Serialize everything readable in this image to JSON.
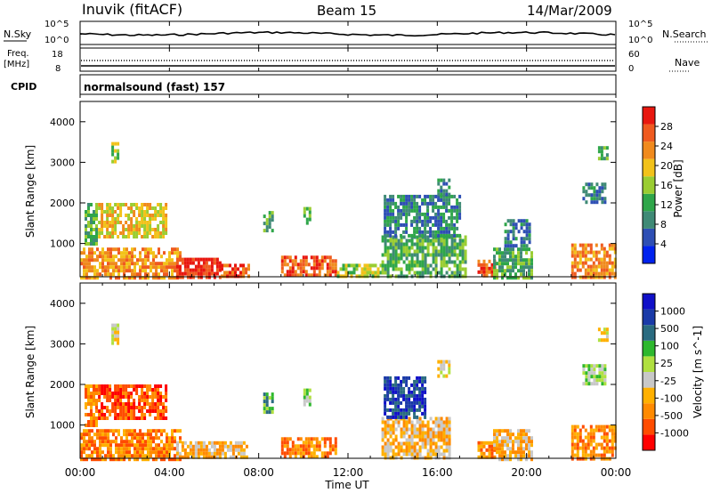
{
  "header": {
    "station": "Inuvik (fitACF)",
    "beam": "Beam 15",
    "date": "14/Mar/2009"
  },
  "strip_labels": {
    "nsky": "N.Sky",
    "nsearch": "N.Search",
    "freq_line1": "Freq.",
    "freq_line2": "[MHz]",
    "nave": "Nave",
    "cpid": "CPID"
  },
  "strip_ticks": {
    "nsky_top": "10^5",
    "nsky_bottom": "10^0",
    "nsearch_top": "10^5",
    "nsearch_bottom": "10^0",
    "freq_top": "18",
    "freq_bottom": "8",
    "nave_top": "60",
    "nave_bottom": "0"
  },
  "cpid_text": "normalsound (fast) 157",
  "xaxis": {
    "label": "Time UT",
    "ticks": [
      "00:00",
      "04:00",
      "08:00",
      "12:00",
      "16:00",
      "20:00",
      "00:00"
    ]
  },
  "colors": {
    "power": [
      "#0022ee",
      "#2e4fb4",
      "#3f8a76",
      "#2fa64a",
      "#9acd32",
      "#f2c21a",
      "#f08a1d",
      "#ef5a1f",
      "#e8170f"
    ],
    "velocity": [
      "#ff0000",
      "#ff4c00",
      "#ff8a00",
      "#ffb000",
      "#c8c8c8",
      "#b0e040",
      "#2eb82e",
      "#2a6b80",
      "#1a3aa8",
      "#1010c8"
    ]
  },
  "chart_data": [
    {
      "type": "heatmap",
      "name": "Power",
      "ylabel": "Slant Range [km]",
      "xlabel": "Time UT",
      "ylim": [
        180,
        4500
      ],
      "yticks": [
        "1000",
        "2000",
        "3000",
        "4000"
      ],
      "colorbar_label": "Power [dB]",
      "colorbar_ticks": [
        "4",
        "8",
        "12",
        "16",
        "20",
        "24",
        "28"
      ],
      "colorbar_range": [
        0,
        32
      ],
      "regions": [
        {
          "t0": 0.0,
          "t1": 4.5,
          "r0": 180,
          "r1": 900,
          "v": 22
        },
        {
          "t0": 4.3,
          "t1": 6.3,
          "r0": 180,
          "r1": 650,
          "v": 30
        },
        {
          "t0": 6.3,
          "t1": 7.5,
          "r0": 180,
          "r1": 500,
          "v": 28
        },
        {
          "t0": 0.8,
          "t1": 3.8,
          "r0": 1200,
          "r1": 2000,
          "v": 18
        },
        {
          "t0": 0.2,
          "t1": 0.7,
          "r0": 1000,
          "r1": 2000,
          "v": 10
        },
        {
          "t0": 1.4,
          "t1": 1.7,
          "r0": 3000,
          "r1": 3500,
          "v": 14
        },
        {
          "t0": 9.0,
          "t1": 11.5,
          "r0": 180,
          "r1": 700,
          "v": 26
        },
        {
          "t0": 11.5,
          "t1": 13.5,
          "r0": 180,
          "r1": 500,
          "v": 14
        },
        {
          "t0": 8.2,
          "t1": 8.6,
          "r0": 1300,
          "r1": 1800,
          "v": 10
        },
        {
          "t0": 10.0,
          "t1": 10.3,
          "r0": 1500,
          "r1": 1900,
          "v": 10
        },
        {
          "t0": 13.5,
          "t1": 17.3,
          "r0": 180,
          "r1": 1200,
          "v": 10
        },
        {
          "t0": 13.6,
          "t1": 17.0,
          "r0": 1200,
          "r1": 2200,
          "v": 8
        },
        {
          "t0": 16.0,
          "t1": 16.5,
          "r0": 2200,
          "r1": 2600,
          "v": 6
        },
        {
          "t0": 17.8,
          "t1": 18.6,
          "r0": 180,
          "r1": 600,
          "v": 26
        },
        {
          "t0": 18.5,
          "t1": 20.2,
          "r0": 180,
          "r1": 900,
          "v": 10
        },
        {
          "t0": 19.0,
          "t1": 20.1,
          "r0": 900,
          "r1": 1600,
          "v": 8
        },
        {
          "t0": 22.0,
          "t1": 24.0,
          "r0": 180,
          "r1": 1000,
          "v": 22
        },
        {
          "t0": 22.5,
          "t1": 23.5,
          "r0": 2000,
          "r1": 2500,
          "v": 8
        },
        {
          "t0": 23.2,
          "t1": 23.6,
          "r0": 3100,
          "r1": 3400,
          "v": 12
        }
      ]
    },
    {
      "type": "heatmap",
      "name": "Velocity",
      "ylabel": "Slant Range [km]",
      "xlabel": "Time UT",
      "ylim": [
        180,
        4500
      ],
      "yticks": [
        "1000",
        "2000",
        "3000",
        "4000"
      ],
      "colorbar_label": "Velocity [m s^-1]",
      "colorbar_ticks": [
        "-1000",
        "-500",
        "-100",
        "-25",
        "25",
        "100",
        "500",
        "1000"
      ],
      "regions": [
        {
          "t0": 0.0,
          "t1": 4.5,
          "r0": 180,
          "r1": 900,
          "v": 2
        },
        {
          "t0": 4.3,
          "t1": 7.5,
          "r0": 180,
          "r1": 600,
          "v": 3
        },
        {
          "t0": 0.8,
          "t1": 3.8,
          "r0": 1200,
          "r1": 2000,
          "v": 1
        },
        {
          "t0": 0.2,
          "t1": 0.7,
          "r0": 1000,
          "r1": 2000,
          "v": 2
        },
        {
          "t0": 1.4,
          "t1": 1.7,
          "r0": 3000,
          "r1": 3500,
          "v": 4
        },
        {
          "t0": 9.0,
          "t1": 11.5,
          "r0": 180,
          "r1": 700,
          "v": 2
        },
        {
          "t0": 8.2,
          "t1": 8.6,
          "r0": 1300,
          "r1": 1800,
          "v": 6
        },
        {
          "t0": 10.0,
          "t1": 10.3,
          "r0": 1500,
          "r1": 1900,
          "v": 5
        },
        {
          "t0": 13.5,
          "t1": 16.5,
          "r0": 180,
          "r1": 1200,
          "v": 3
        },
        {
          "t0": 13.6,
          "t1": 15.5,
          "r0": 1200,
          "r1": 2200,
          "v": 8
        },
        {
          "t0": 16.0,
          "t1": 16.5,
          "r0": 2200,
          "r1": 2600,
          "v": 4
        },
        {
          "t0": 17.8,
          "t1": 18.6,
          "r0": 180,
          "r1": 600,
          "v": 2
        },
        {
          "t0": 18.5,
          "t1": 20.2,
          "r0": 180,
          "r1": 900,
          "v": 3
        },
        {
          "t0": 22.0,
          "t1": 24.0,
          "r0": 180,
          "r1": 1000,
          "v": 2
        },
        {
          "t0": 22.5,
          "t1": 23.5,
          "r0": 2000,
          "r1": 2500,
          "v": 5
        },
        {
          "t0": 23.2,
          "t1": 23.6,
          "r0": 3100,
          "r1": 3400,
          "v": 4
        }
      ]
    }
  ]
}
